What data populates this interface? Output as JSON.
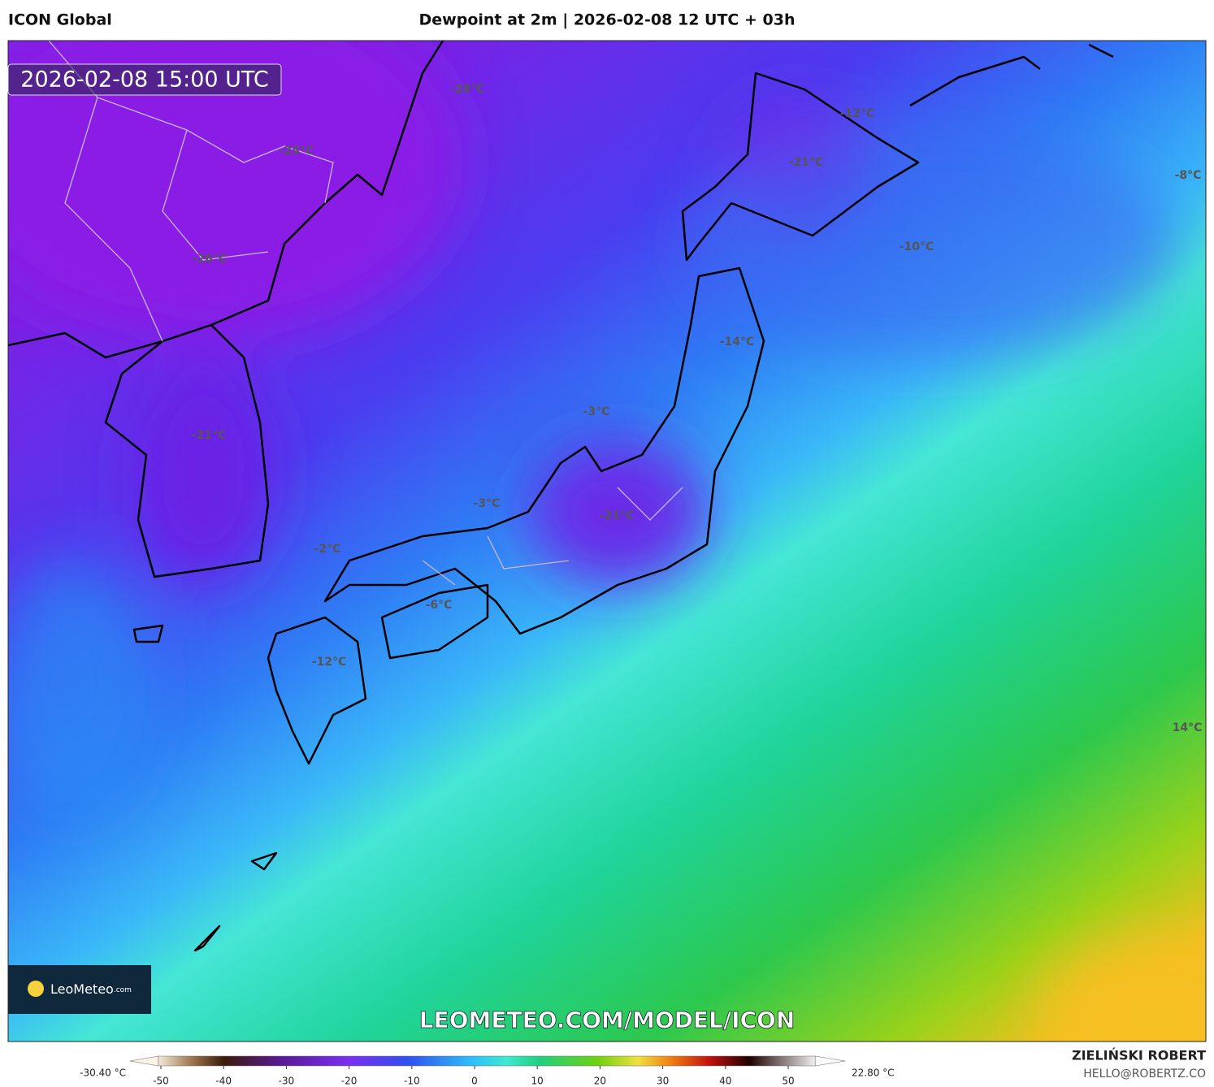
{
  "header": {
    "model": "ICON Global",
    "title": "Dewpoint at 2m | 2026-02-08 12 UTC + 03h"
  },
  "map": {
    "valid_time": "2026-02-08 15:00 UTC",
    "labels": [
      "-28°C",
      "-25°C",
      "-26°C",
      "-21°C",
      "-12°C",
      "-21°C",
      "-8°C",
      "-10°C",
      "-14°C",
      "-3°C",
      "-3°C",
      "-21°C",
      "-2°C",
      "-6°C",
      "-12°C",
      "14°C"
    ],
    "watermark": "LEOMETEO.COM/MODEL/ICON",
    "logo": {
      "name": "LeoMeteo",
      "suffix": ".com"
    }
  },
  "colorbar": {
    "min_label": "-30.40 °C",
    "max_label": "22.80 °C",
    "lim": [
      -50.4,
      54.3
    ],
    "ticks": [
      -50,
      -40,
      -30,
      -20,
      -10,
      0,
      10,
      20,
      30,
      40,
      50
    ]
  },
  "credits": {
    "author": "ZIELIŃSKI ROBERT",
    "contact": "HELLO@ROBERTZ.CO"
  }
}
